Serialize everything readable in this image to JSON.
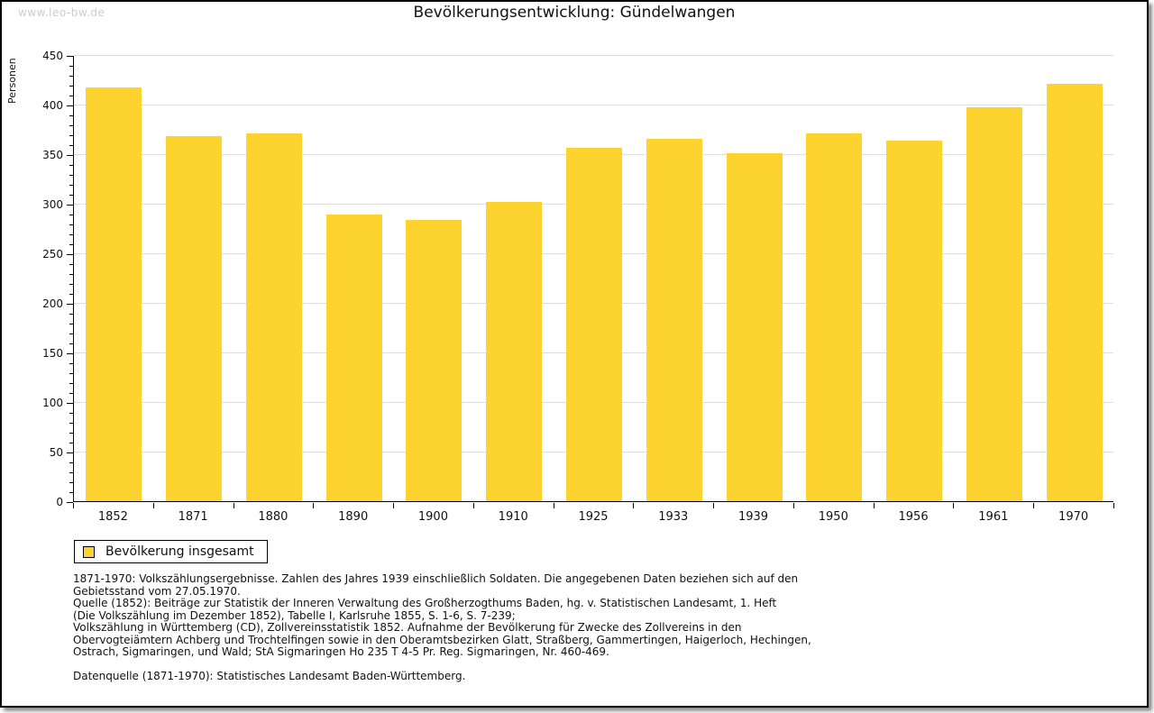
{
  "watermark": "www.leo-bw.de",
  "header": {
    "title": "Bevölkerungsentwicklung: Gündelwangen"
  },
  "colors": {
    "bar": "#FCD32F",
    "grid": "#DEDEDE",
    "axis": "#000000",
    "watermark": "#CCCCCC",
    "background": "#FFFFFF"
  },
  "chart_data": {
    "type": "bar",
    "title": "Bevölkerungsentwicklung: Gündelwangen",
    "xlabel": "",
    "ylabel": "Personen",
    "categories": [
      "1852",
      "1871",
      "1880",
      "1890",
      "1900",
      "1910",
      "1925",
      "1933",
      "1939",
      "1950",
      "1956",
      "1961",
      "1970"
    ],
    "values": [
      417,
      368,
      371,
      289,
      284,
      302,
      356,
      365,
      351,
      371,
      364,
      397,
      421
    ],
    "ylim": [
      0,
      450
    ],
    "ytick_interval": 50,
    "minor_tick_interval": 10,
    "grid": true,
    "bar_color": "#FCD32F",
    "legend_position": "bottom-left"
  },
  "legend": {
    "label": "Bevölkerung insgesamt"
  },
  "footnotes": {
    "lines": [
      "1871-1970: Volkszählungsergebnisse. Zahlen des Jahres 1939 einschließlich Soldaten. Die angegebenen Daten beziehen sich auf den",
      "Gebietsstand vom 27.05.1970.",
      "Quelle (1852): Beiträge zur Statistik der Inneren Verwaltung des Großherzogthums Baden, hg. v. Statistischen Landesamt, 1. Heft",
      "(Die Volkszählung im Dezember 1852), Tabelle I, Karlsruhe 1855, S. 1-6, S. 7-239;",
      "Volkszählung in Württemberg (CD), Zollvereinsstatistik 1852. Aufnahme der Bevölkerung für Zwecke des Zollvereins in den",
      "Obervogteiämtern Achberg und Trochtelfingen sowie in den Oberamtsbezirken Glatt, Straßberg, Gammertingen, Haigerloch, Hechingen,",
      "Ostrach, Sigmaringen, und Wald; StA Sigmaringen Ho 235 T 4-5 Pr. Reg. Sigmaringen, Nr. 460-469."
    ],
    "datasource": "Datenquelle (1871-1970): Statistisches Landesamt Baden-Württemberg."
  }
}
